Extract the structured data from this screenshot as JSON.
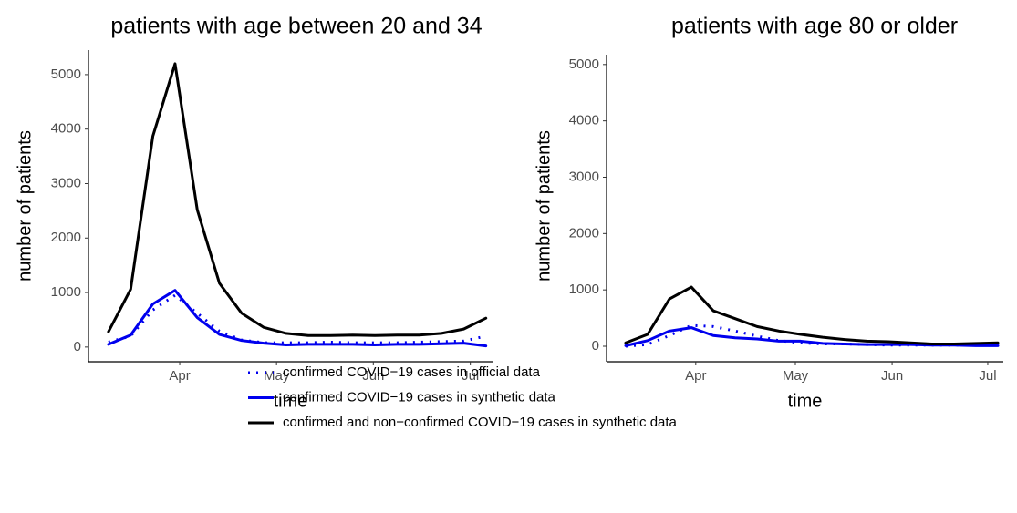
{
  "chart_data": [
    {
      "type": "line",
      "title": "patients with age between 20 and 34",
      "xlabel": "time",
      "ylabel": "number of patients",
      "x": [
        0,
        1,
        2,
        3,
        4,
        5,
        6,
        7,
        8,
        9,
        10,
        11,
        12,
        13,
        14,
        15,
        16,
        17
      ],
      "xlim": [
        -0.9,
        17.3
      ],
      "xticks": [
        {
          "value": 3.21,
          "label": "Apr"
        },
        {
          "value": 7.57,
          "label": "May"
        },
        {
          "value": 11.93,
          "label": "Jun"
        },
        {
          "value": 16.3,
          "label": "Jul"
        }
      ],
      "ylim": [
        -270,
        5450
      ],
      "yticks": [
        0,
        1000,
        2000,
        3000,
        4000,
        5000
      ],
      "series": [
        {
          "name": "confirmed COVID−19 cases in official data",
          "color": "#0000ee",
          "dash": "dotted",
          "values": [
            90,
            200,
            680,
            950,
            620,
            290,
            130,
            80,
            80,
            80,
            90,
            80,
            80,
            80,
            90,
            100,
            110,
            200
          ]
        },
        {
          "name": "confirmed COVID−19 cases in synthetic data",
          "color": "#0000ee",
          "dash": "solid",
          "values": [
            50,
            220,
            790,
            1040,
            540,
            230,
            120,
            70,
            40,
            50,
            50,
            50,
            40,
            50,
            50,
            60,
            70,
            20
          ]
        },
        {
          "name": "confirmed and non−confirmed COVID−19 cases in synthetic data",
          "color": "#000000",
          "dash": "solid",
          "values": [
            280,
            1060,
            3870,
            5200,
            2520,
            1170,
            620,
            360,
            250,
            210,
            210,
            220,
            210,
            220,
            220,
            250,
            330,
            530
          ]
        }
      ]
    },
    {
      "type": "line",
      "title": "patients with age 80 or older",
      "xlabel": "time",
      "ylabel": "number of patients",
      "x": [
        0,
        1,
        2,
        3,
        4,
        5,
        6,
        7,
        8,
        9,
        10,
        11,
        12,
        13,
        14,
        15,
        16,
        17
      ],
      "xlim": [
        -0.875,
        17.25
      ],
      "xticks": [
        {
          "value": 3.2,
          "label": "Apr"
        },
        {
          "value": 7.75,
          "label": "May"
        },
        {
          "value": 12.17,
          "label": "Jun"
        },
        {
          "value": 16.54,
          "label": "Jul"
        }
      ],
      "ylim": [
        -275,
        5175
      ],
      "yticks": [
        0,
        1000,
        2000,
        3000,
        4000,
        5000
      ],
      "series": [
        {
          "color": "#0000ee",
          "dash": "dotted",
          "values": [
            0,
            30,
            190,
            370,
            350,
            270,
            180,
            100,
            60,
            40,
            40,
            30,
            20,
            20,
            20,
            20,
            20,
            20
          ]
        },
        {
          "color": "#0000ee",
          "dash": "solid",
          "values": [
            10,
            100,
            270,
            330,
            190,
            150,
            130,
            90,
            90,
            50,
            40,
            30,
            30,
            30,
            20,
            20,
            10,
            10
          ]
        },
        {
          "color": "#000000",
          "dash": "solid",
          "values": [
            60,
            210,
            840,
            1050,
            630,
            490,
            350,
            270,
            210,
            160,
            120,
            90,
            80,
            60,
            40,
            40,
            50,
            60
          ]
        }
      ]
    }
  ]
}
